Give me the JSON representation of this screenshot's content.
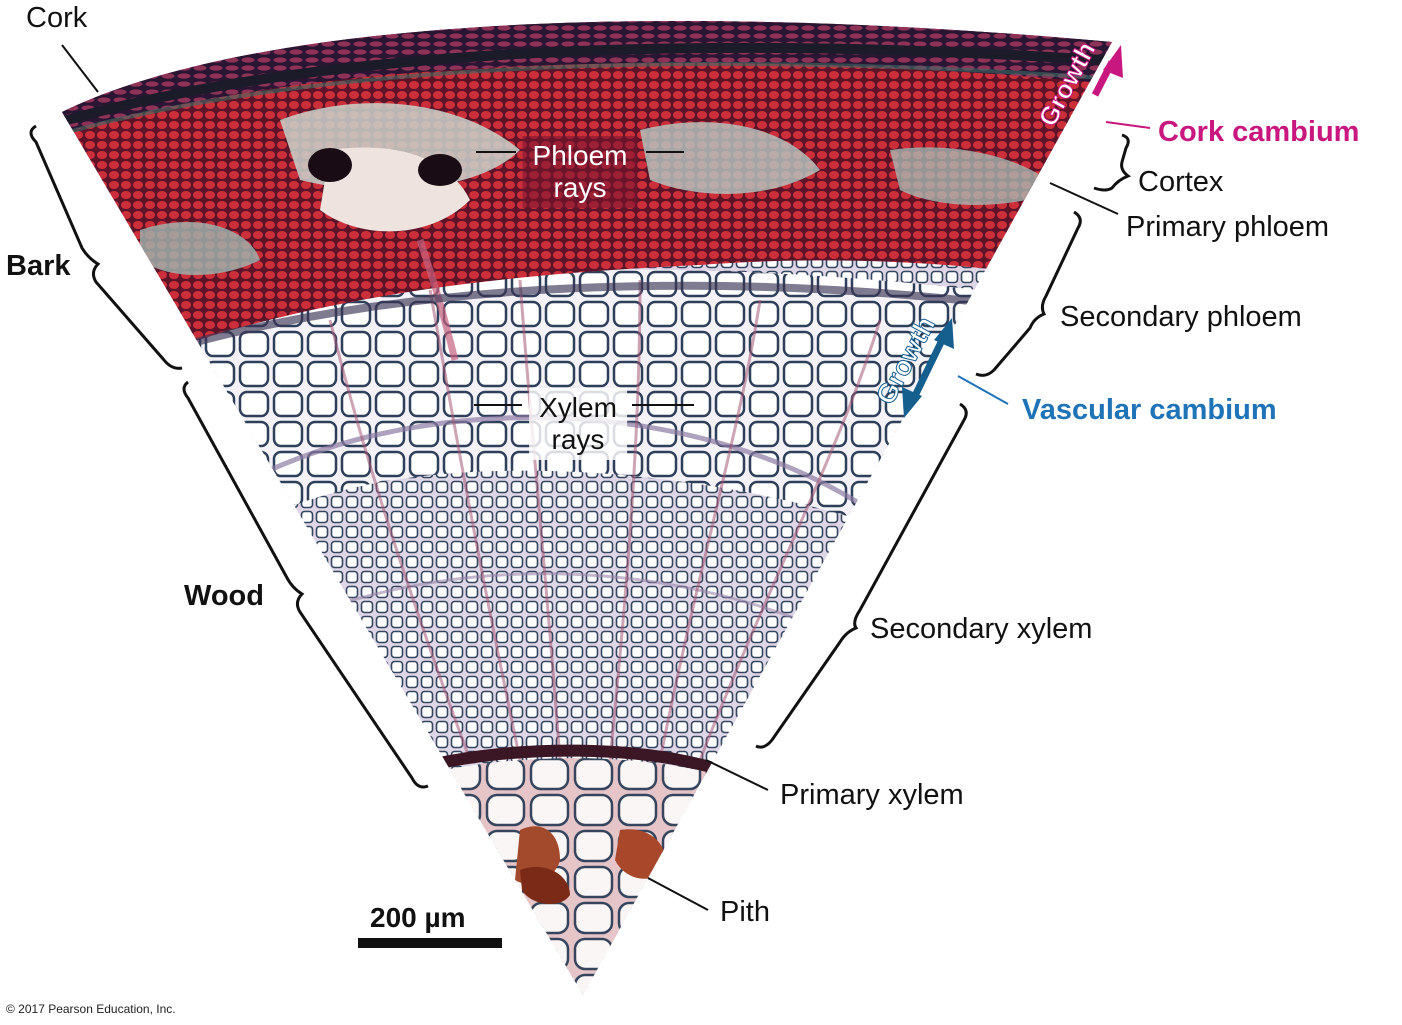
{
  "labels": {
    "cork": "Cork",
    "bark": "Bark",
    "wood": "Wood",
    "phloem_rays_1": "Phloem",
    "phloem_rays_2": "rays",
    "xylem_rays_1": "Xylem",
    "xylem_rays_2": "rays",
    "cork_cambium": "Cork cambium",
    "cortex": "Cortex",
    "primary_phloem": "Primary phloem",
    "secondary_phloem": "Secondary phloem",
    "vascular_cambium": "Vascular cambium",
    "secondary_xylem": "Secondary xylem",
    "primary_xylem": "Primary xylem",
    "pith": "Pith",
    "growth_outer": "Growth",
    "growth_inner": "Growth"
  },
  "scale_bar": {
    "label": "200  µm"
  },
  "copyright": "© 2017 Pearson Education, Inc.",
  "colors": {
    "cork_cambium": "#c8177f",
    "vascular_cambium": "#1f73b7",
    "bark_red": "#a3203a",
    "wood_pale": "#e9e4ef"
  }
}
